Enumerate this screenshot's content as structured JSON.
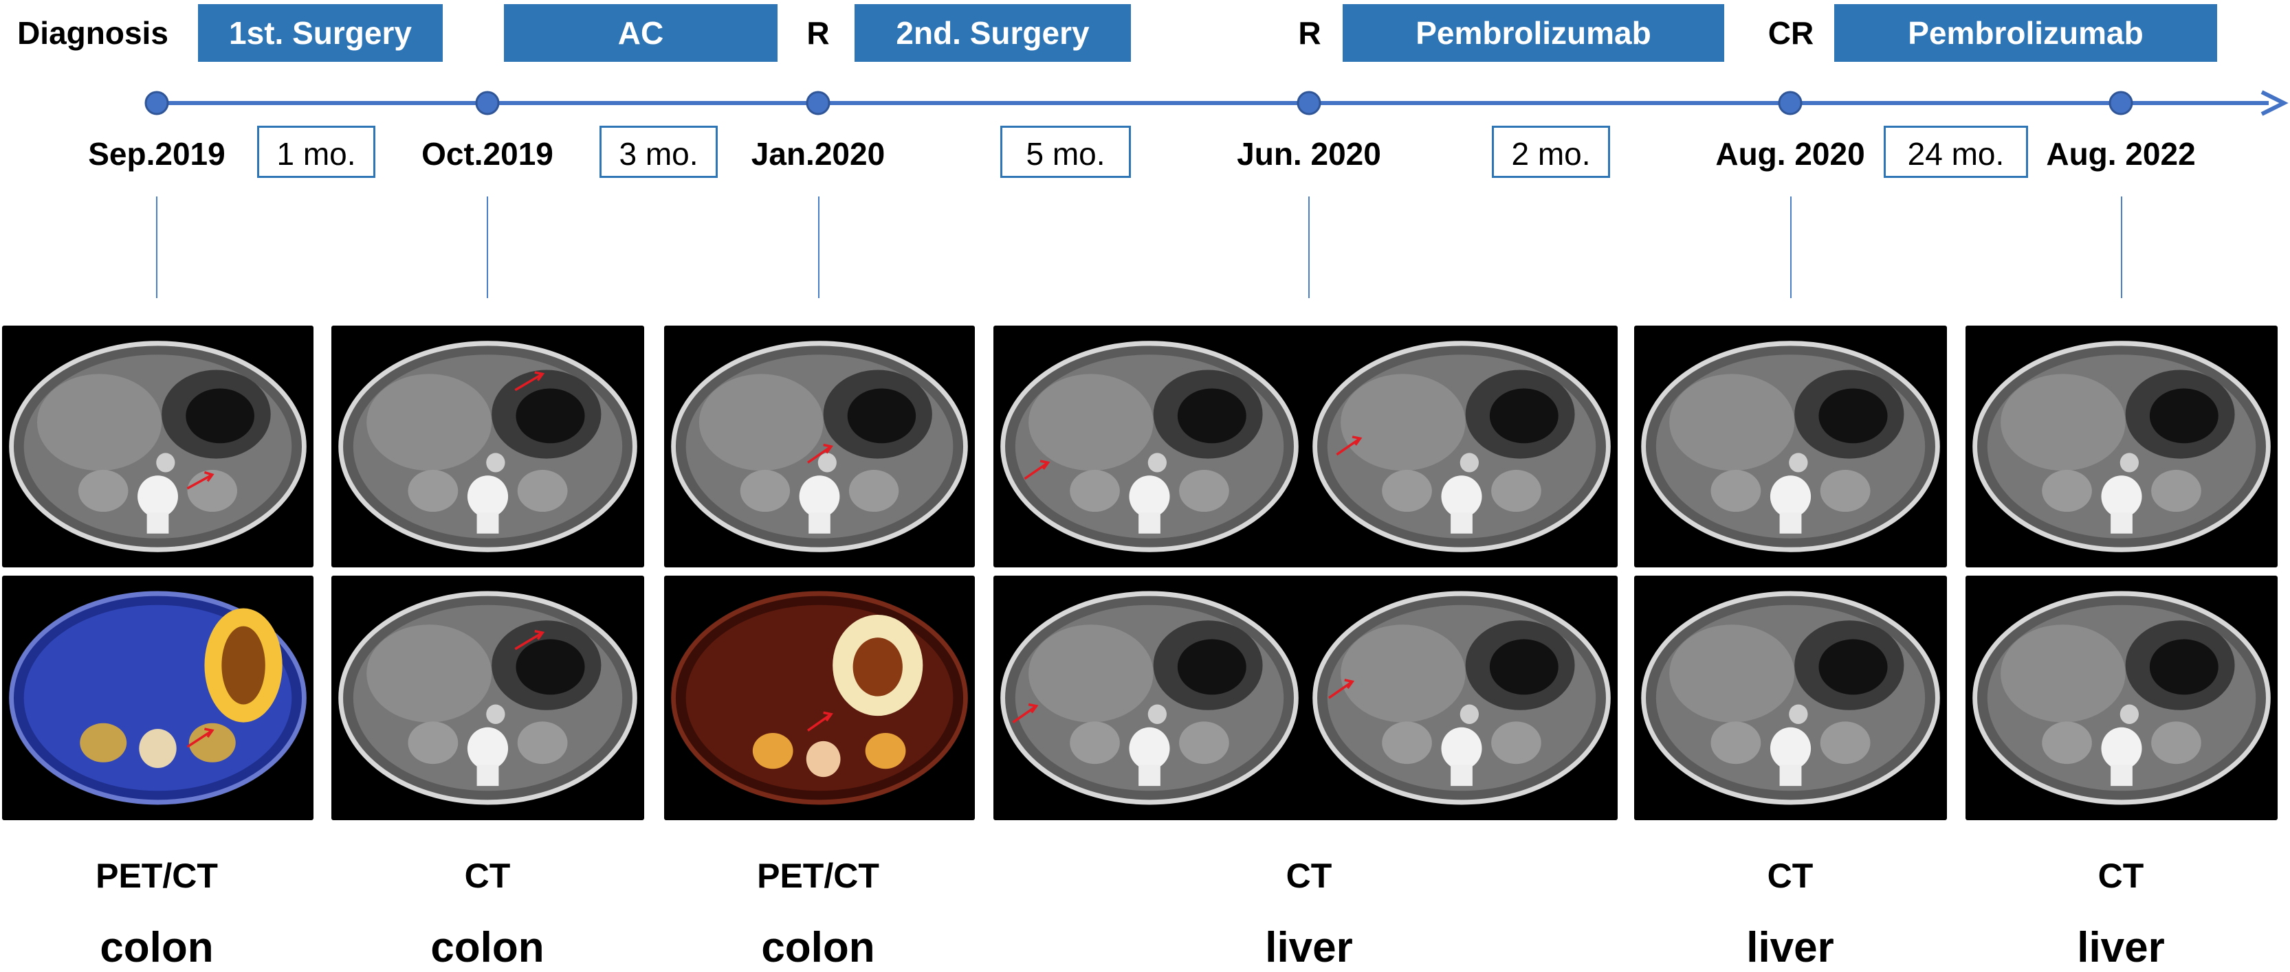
{
  "header": {
    "diagnosis": "Diagnosis",
    "phases": [
      "1st. Surgery",
      "AC",
      "2nd. Surgery",
      "Pembrolizumab",
      "Pembrolizumab"
    ],
    "responses": [
      "R",
      "R",
      "CR"
    ]
  },
  "timeline": {
    "dates": [
      "Sep.2019",
      "Oct.2019",
      "Jan.2020",
      "Jun. 2020",
      "Aug. 2020",
      "Aug. 2022"
    ],
    "durations": [
      "1 mo.",
      "3 mo.",
      "5 mo.",
      "2 mo.",
      "24 mo."
    ]
  },
  "columns": [
    {
      "modality": "PET/CT",
      "site": "colon"
    },
    {
      "modality": "CT",
      "site": "colon"
    },
    {
      "modality": "PET/CT",
      "site": "colon"
    },
    {
      "modality": "CT",
      "site": "liver"
    },
    {
      "modality": "CT",
      "site": "liver"
    },
    {
      "modality": "CT",
      "site": "liver"
    }
  ],
  "colors": {
    "accent": "#2E75B6",
    "axis": "#4472C4",
    "arrow": "#E31B23",
    "pet_blue": "#2B3FA8",
    "pet_hot": "#F5C23A"
  }
}
